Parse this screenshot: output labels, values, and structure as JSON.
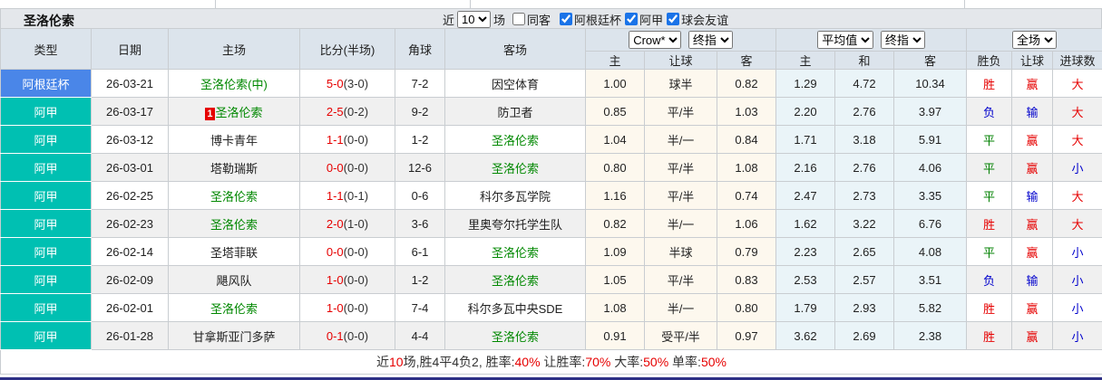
{
  "title": "圣洛伦索",
  "controls": {
    "recent_label": "近",
    "recent_value": "10",
    "matches_label": "场",
    "checkboxes": [
      {
        "label": "同客",
        "checked": false
      },
      {
        "label": "阿根廷杯",
        "checked": true
      },
      {
        "label": "阿甲",
        "checked": true
      },
      {
        "label": "球会友谊",
        "checked": true
      }
    ]
  },
  "table": {
    "main_columns": [
      "类型",
      "日期",
      "主场",
      "比分(半场)",
      "角球",
      "客场"
    ],
    "selects": {
      "handicap_company": "Crow*",
      "handicap_odds_type": "终指",
      "europe_company": "平均值",
      "europe_odds_type": "终指",
      "result_scope": "全场"
    },
    "sub_headers": [
      "主",
      "让球",
      "客",
      "主",
      "和",
      "客",
      "胜负",
      "让球",
      "进球数"
    ],
    "rows": [
      {
        "type": "阿根廷杯",
        "type_style": "cup",
        "date": "26-03-21",
        "home": "圣洛伦索(中)",
        "home_target": true,
        "badge": "",
        "score": "5-0",
        "half": "(3-0)",
        "corner": "7-2",
        "away": "因空体育",
        "away_target": false,
        "hc_home": "1.00",
        "hc_line": "球半",
        "hc_away": "0.82",
        "eu_home": "1.29",
        "eu_draw": "4.72",
        "eu_away": "10.34",
        "result": "胜",
        "result_style": "win",
        "hc_result": "赢",
        "hc_result_style": "win",
        "goal_result": "大",
        "goal_style": "big"
      },
      {
        "type": "阿甲",
        "type_style": "league",
        "date": "26-03-17",
        "home": "圣洛伦索",
        "home_target": true,
        "badge": "1",
        "score": "2-5",
        "half": "(0-2)",
        "corner": "9-2",
        "away": "防卫者",
        "away_target": false,
        "hc_home": "0.85",
        "hc_line": "平/半",
        "hc_away": "1.03",
        "eu_home": "2.20",
        "eu_draw": "2.76",
        "eu_away": "3.97",
        "result": "负",
        "result_style": "loss",
        "hc_result": "输",
        "hc_result_style": "loss",
        "goal_result": "大",
        "goal_style": "big"
      },
      {
        "type": "阿甲",
        "type_style": "league",
        "date": "26-03-12",
        "home": "博卡青年",
        "home_target": false,
        "badge": "",
        "score": "1-1",
        "half": "(0-0)",
        "corner": "1-2",
        "away": "圣洛伦索",
        "away_target": true,
        "hc_home": "1.04",
        "hc_line": "半/一",
        "hc_away": "0.84",
        "eu_home": "1.71",
        "eu_draw": "3.18",
        "eu_away": "5.91",
        "result": "平",
        "result_style": "draw",
        "hc_result": "赢",
        "hc_result_style": "win",
        "goal_result": "大",
        "goal_style": "big"
      },
      {
        "type": "阿甲",
        "type_style": "league",
        "date": "26-03-01",
        "home": "塔勒瑞斯",
        "home_target": false,
        "badge": "",
        "score": "0-0",
        "half": "(0-0)",
        "corner": "12-6",
        "away": "圣洛伦索",
        "away_target": true,
        "hc_home": "0.80",
        "hc_line": "平/半",
        "hc_away": "1.08",
        "eu_home": "2.16",
        "eu_draw": "2.76",
        "eu_away": "4.06",
        "result": "平",
        "result_style": "draw",
        "hc_result": "赢",
        "hc_result_style": "win",
        "goal_result": "小",
        "goal_style": "small"
      },
      {
        "type": "阿甲",
        "type_style": "league",
        "date": "26-02-25",
        "home": "圣洛伦索",
        "home_target": true,
        "badge": "",
        "score": "1-1",
        "half": "(0-1)",
        "corner": "0-6",
        "away": "科尔多瓦学院",
        "away_target": false,
        "hc_home": "1.16",
        "hc_line": "平/半",
        "hc_away": "0.74",
        "eu_home": "2.47",
        "eu_draw": "2.73",
        "eu_away": "3.35",
        "result": "平",
        "result_style": "draw",
        "hc_result": "输",
        "hc_result_style": "loss",
        "goal_result": "大",
        "goal_style": "big"
      },
      {
        "type": "阿甲",
        "type_style": "league",
        "date": "26-02-23",
        "home": "圣洛伦索",
        "home_target": true,
        "badge": "",
        "score": "2-0",
        "half": "(1-0)",
        "corner": "3-6",
        "away": "里奥夸尔托学生队",
        "away_target": false,
        "hc_home": "0.82",
        "hc_line": "半/一",
        "hc_away": "1.06",
        "eu_home": "1.62",
        "eu_draw": "3.22",
        "eu_away": "6.76",
        "result": "胜",
        "result_style": "win",
        "hc_result": "赢",
        "hc_result_style": "win",
        "goal_result": "大",
        "goal_style": "big"
      },
      {
        "type": "阿甲",
        "type_style": "league",
        "date": "26-02-14",
        "home": "圣塔菲联",
        "home_target": false,
        "badge": "",
        "score": "0-0",
        "half": "(0-0)",
        "corner": "6-1",
        "away": "圣洛伦索",
        "away_target": true,
        "hc_home": "1.09",
        "hc_line": "半球",
        "hc_away": "0.79",
        "eu_home": "2.23",
        "eu_draw": "2.65",
        "eu_away": "4.08",
        "result": "平",
        "result_style": "draw",
        "hc_result": "赢",
        "hc_result_style": "win",
        "goal_result": "小",
        "goal_style": "small"
      },
      {
        "type": "阿甲",
        "type_style": "league",
        "date": "26-02-09",
        "home": "飓风队",
        "home_target": false,
        "badge": "",
        "score": "1-0",
        "half": "(0-0)",
        "corner": "1-2",
        "away": "圣洛伦索",
        "away_target": true,
        "hc_home": "1.05",
        "hc_line": "平/半",
        "hc_away": "0.83",
        "eu_home": "2.53",
        "eu_draw": "2.57",
        "eu_away": "3.51",
        "result": "负",
        "result_style": "loss",
        "hc_result": "输",
        "hc_result_style": "loss",
        "goal_result": "小",
        "goal_style": "small"
      },
      {
        "type": "阿甲",
        "type_style": "league",
        "date": "26-02-01",
        "home": "圣洛伦索",
        "home_target": true,
        "badge": "",
        "score": "1-0",
        "half": "(0-0)",
        "corner": "7-4",
        "away": "科尔多瓦中央SDE",
        "away_target": false,
        "hc_home": "1.08",
        "hc_line": "半/一",
        "hc_away": "0.80",
        "eu_home": "1.79",
        "eu_draw": "2.93",
        "eu_away": "5.82",
        "result": "胜",
        "result_style": "win",
        "hc_result": "赢",
        "hc_result_style": "win",
        "goal_result": "小",
        "goal_style": "small"
      },
      {
        "type": "阿甲",
        "type_style": "league",
        "date": "26-01-28",
        "home": "甘拿斯亚门多萨",
        "home_target": false,
        "badge": "",
        "score": "0-1",
        "half": "(0-0)",
        "corner": "4-4",
        "away": "圣洛伦索",
        "away_target": true,
        "hc_home": "0.91",
        "hc_line": "受平/半",
        "hc_away": "0.97",
        "eu_home": "3.62",
        "eu_draw": "2.69",
        "eu_away": "2.38",
        "result": "胜",
        "result_style": "win",
        "hc_result": "赢",
        "hc_result_style": "win",
        "goal_result": "小",
        "goal_style": "small"
      }
    ]
  },
  "footer_segments": [
    {
      "text": "近",
      "red": false
    },
    {
      "text": "10",
      "red": true
    },
    {
      "text": "场,胜4平4负2, 胜率:",
      "red": false
    },
    {
      "text": "40%",
      "red": true
    },
    {
      "text": " 让胜率:",
      "red": false
    },
    {
      "text": "70%",
      "red": true
    },
    {
      "text": " 大率:",
      "red": false
    },
    {
      "text": "50%",
      "red": true
    },
    {
      "text": " 单率:",
      "red": false
    },
    {
      "text": "50%",
      "red": true
    }
  ],
  "colors": {
    "cup_bg": "#4a86e8",
    "league_bg": "#00c0b2",
    "target_team_green": "#008800",
    "score_red": "#e60000",
    "win_red": "#e60000",
    "draw_green": "#008000",
    "loss_blue": "#0000cc",
    "handicap_col_bg": "#fdf8ee",
    "europe_col_bg": "#eaf4f8",
    "header_bg": "#dce4ec",
    "title_bar_bg": "#e4e7eb",
    "bottom_divider": "#2e3086"
  }
}
